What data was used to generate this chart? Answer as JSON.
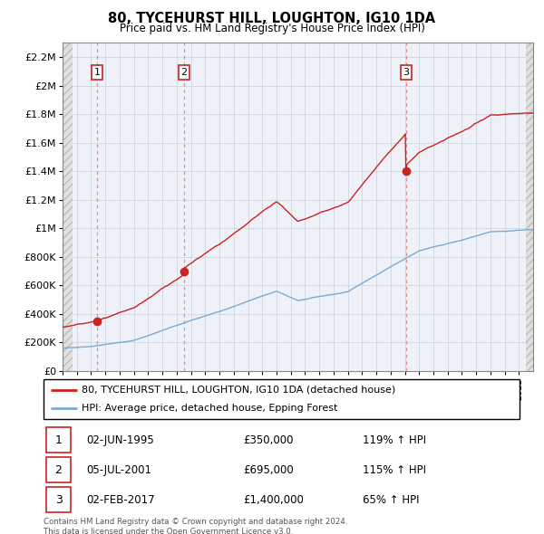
{
  "title": "80, TYCEHURST HILL, LOUGHTON, IG10 1DA",
  "subtitle": "Price paid vs. HM Land Registry's House Price Index (HPI)",
  "ylim": [
    0,
    2300000
  ],
  "yticks": [
    0,
    200000,
    400000,
    600000,
    800000,
    1000000,
    1200000,
    1400000,
    1600000,
    1800000,
    2000000,
    2200000
  ],
  "ytick_labels": [
    "£0",
    "£200K",
    "£400K",
    "£600K",
    "£800K",
    "£1M",
    "£1.2M",
    "£1.4M",
    "£1.6M",
    "£1.8M",
    "£2M",
    "£2.2M"
  ],
  "xlim_start": 1993.0,
  "xlim_end": 2025.99,
  "sale_dates": [
    1995.42,
    2001.51,
    2017.09
  ],
  "sale_prices": [
    350000,
    695000,
    1400000
  ],
  "sale_labels": [
    "1",
    "2",
    "3"
  ],
  "hpi_line_color": "#7aaad0",
  "sale_line_color": "#cc2222",
  "sale_marker_color": "#cc2222",
  "dashed_line_color": "#ee8888",
  "hatch_facecolor": "#e0e0e0",
  "hatch_edgecolor": "#bbbbbb",
  "plot_bg": "#eef2f8",
  "grid_color": "#c8d0dc",
  "legend_entry1": "80, TYCEHURST HILL, LOUGHTON, IG10 1DA (detached house)",
  "legend_entry2": "HPI: Average price, detached house, Epping Forest",
  "table_rows": [
    {
      "num": "1",
      "date": "02-JUN-1995",
      "price": "£350,000",
      "hpi": "119% ↑ HPI"
    },
    {
      "num": "2",
      "date": "05-JUL-2001",
      "price": "£695,000",
      "hpi": "115% ↑ HPI"
    },
    {
      "num": "3",
      "date": "02-FEB-2017",
      "price": "£1,400,000",
      "hpi": "65% ↑ HPI"
    }
  ],
  "footer": "Contains HM Land Registry data © Crown copyright and database right 2024.\nThis data is licensed under the Open Government Licence v3.0.",
  "hatch_left_end": 1993.7,
  "hatch_right_start": 2025.5
}
